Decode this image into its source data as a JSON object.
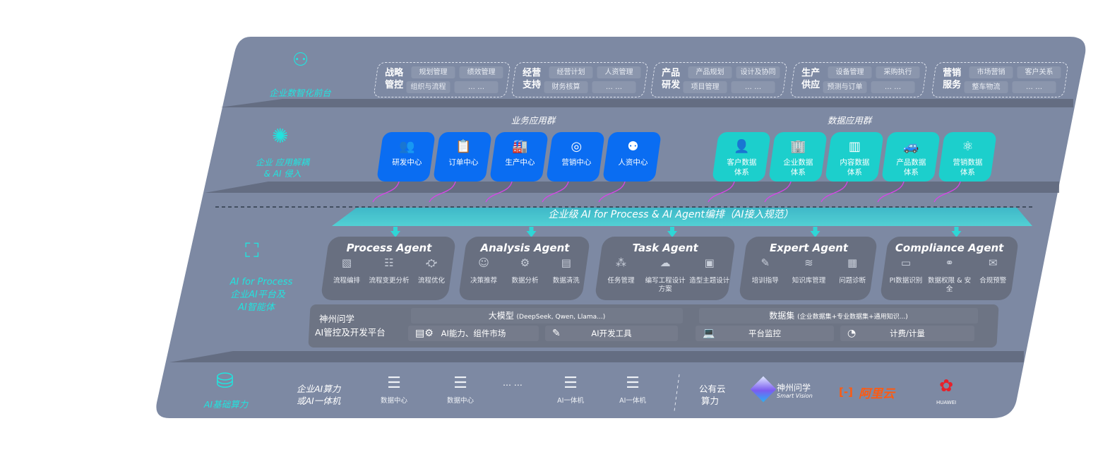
{
  "colors": {
    "panel": "#7d89a3",
    "accent_teal": "#22e3de",
    "business_tile": "#0a6df2",
    "data_tile": "#1ccfcc",
    "arrow": "#d845e8",
    "agent_card": "#686f80"
  },
  "front": {
    "label": "企业数智化前台",
    "icon": "brain-icon",
    "groups": [
      {
        "title": "战略管控",
        "items": [
          "规划管理",
          "绩效管理",
          "组织与流程",
          "… …"
        ]
      },
      {
        "title": "经营支持",
        "items": [
          "经营计划",
          "人资管理",
          "财务核算",
          "… …"
        ]
      },
      {
        "title": "产品研发",
        "items": [
          "产品规划",
          "设计及协同",
          "项目管理",
          "… …"
        ]
      },
      {
        "title": "生产供应",
        "items": [
          "设备管理",
          "采购执行",
          "预测与订单",
          "… …"
        ]
      },
      {
        "title": "营销服务",
        "items": [
          "市场营销",
          "客户关系",
          "整车物流",
          "… …"
        ]
      }
    ]
  },
  "apps": {
    "label_line1": "企业 应用解耦",
    "label_line2": "& AI 侵入",
    "icon": "molecule-icon",
    "business_title": "业务应用群",
    "business": [
      {
        "label": "研发中心",
        "icon": "users-icon"
      },
      {
        "label": "订单中心",
        "icon": "clipboard-icon"
      },
      {
        "label": "生产中心",
        "icon": "factory-icon"
      },
      {
        "label": "营销中心",
        "icon": "target-icon"
      },
      {
        "label": "人资中心",
        "icon": "person-icon"
      }
    ],
    "data_title": "数据应用群",
    "data": [
      {
        "label": "客户数据体系",
        "icon": "user-icon"
      },
      {
        "label": "企业数据体系",
        "icon": "building-icon"
      },
      {
        "label": "内容数据体系",
        "icon": "books-icon"
      },
      {
        "label": "产品数据体系",
        "icon": "car-icon"
      },
      {
        "label": "营销数据体系",
        "icon": "atom-icon"
      }
    ]
  },
  "orchestration": {
    "banner": "企业级 AI for Process & AI Agent编排（AI接入规范）"
  },
  "ai_layer": {
    "label_line1": "AI for Process",
    "label_line2": "企业AI平台及",
    "label_line3": "AI智能体",
    "icon": "face-scan-icon",
    "agents": [
      {
        "title": "Process Agent",
        "items": [
          "流程编排",
          "流程变更分析",
          "流程优化"
        ]
      },
      {
        "title": "Analysis Agent",
        "items": [
          "决策推荐",
          "数据分析",
          "数据清洗"
        ]
      },
      {
        "title": "Task Agent",
        "items": [
          "任务管理",
          "编写工程设计方案",
          "造型主题设计"
        ]
      },
      {
        "title": "Expert Agent",
        "items": [
          "培训指导",
          "知识库管理",
          "问题诊断"
        ]
      },
      {
        "title": "Compliance Agent",
        "items": [
          "PI数据识别",
          "数据权限 & 安全",
          "合规预警"
        ]
      }
    ],
    "platform": {
      "name_line1": "神州问学",
      "name_line2": "AI管控及开发平台",
      "model_title": "大模型",
      "model_note": "(DeepSeek, Qwen, Llama...)",
      "dataset_title": "数据集",
      "dataset_note": "(企业数据集+专业数据集+通用知识...)",
      "cells": [
        "AI能力、组件市场",
        "AI开发工具",
        "平台监控",
        "计费/计量"
      ]
    }
  },
  "compute": {
    "label": "AI基础算力",
    "icon": "database-icon",
    "private_label_line1": "企业AI算力",
    "private_label_line2": "或AI一体机",
    "servers": [
      "数据中心",
      "数据中心",
      "AI一体机",
      "AI一体机"
    ],
    "ellipsis": "… …",
    "public_label_line1": "公有云",
    "public_label_line2": "算力",
    "vendors": [
      {
        "name": "神州问学",
        "sub": "Smart Vision"
      },
      {
        "name": "阿里云"
      },
      {
        "name": "HUAWEI"
      }
    ]
  }
}
